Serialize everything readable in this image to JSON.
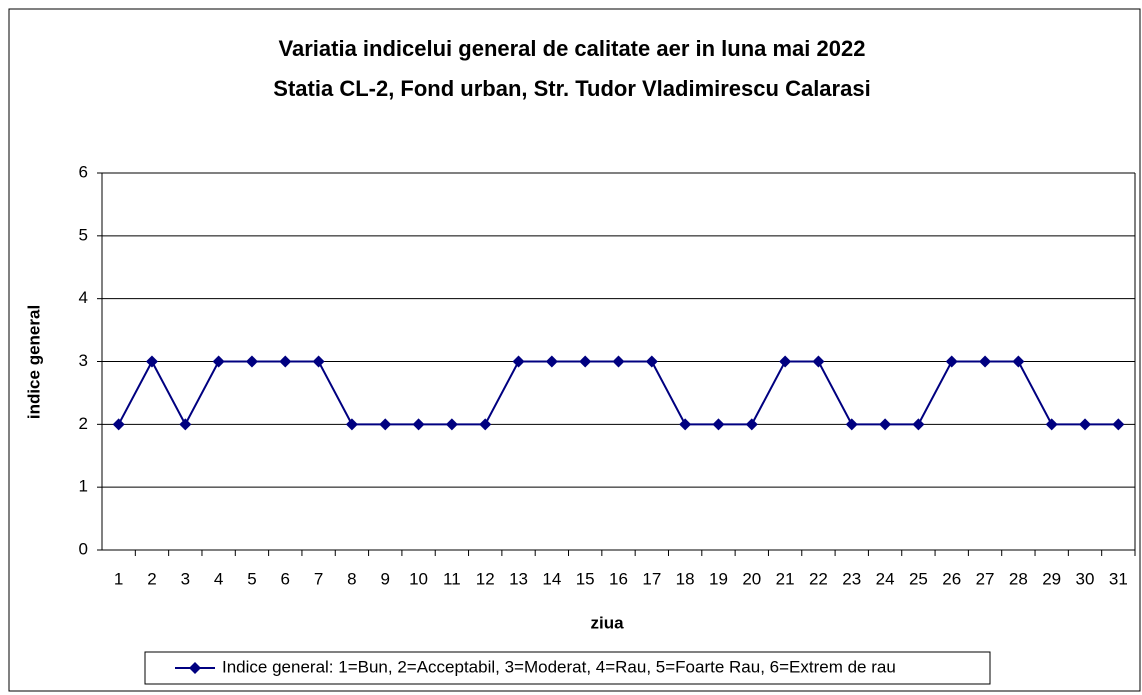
{
  "chart_data": {
    "type": "line",
    "title": "Variatia indicelui general de calitate aer in luna mai 2022",
    "subtitle": "Statia CL-2, Fond urban,  Str. Tudor Vladimirescu Calarasi",
    "x_label": "ziua",
    "y_label": "indice general",
    "categories": [
      "1",
      "2",
      "3",
      "4",
      "5",
      "6",
      "7",
      "8",
      "9",
      "10",
      "11",
      "12",
      "13",
      "14",
      "15",
      "16",
      "17",
      "18",
      "19",
      "20",
      "21",
      "22",
      "23",
      "24",
      "25",
      "26",
      "27",
      "28",
      "29",
      "30",
      "31"
    ],
    "series": [
      {
        "name": "Indice general: 1=Bun, 2=Acceptabil, 3=Moderat, 4=Rau, 5=Foarte Rau, 6=Extrem de rau",
        "color": "#000080",
        "values": [
          2,
          3,
          2,
          3,
          3,
          3,
          3,
          2,
          2,
          2,
          2,
          2,
          3,
          3,
          3,
          3,
          3,
          2,
          2,
          2,
          3,
          3,
          2,
          2,
          2,
          3,
          3,
          3,
          2,
          2,
          2
        ]
      }
    ],
    "ylim": [
      0,
      6
    ],
    "yticks": [
      0,
      1,
      2,
      3,
      4,
      5,
      6
    ],
    "grid": true,
    "legend": "bottom"
  }
}
